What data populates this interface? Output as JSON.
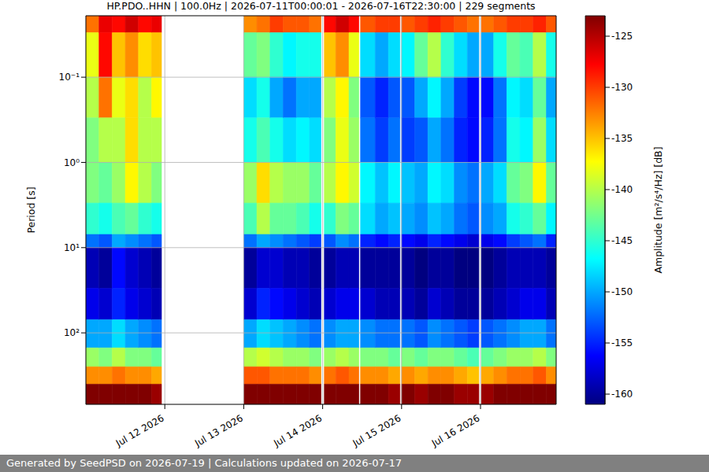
{
  "chart_data": {
    "type": "heatmap",
    "title": "HP.PDO..HHN | 100.0Hz | 2026-07-11T00:00:01 - 2026-07-16T22:30:00 | 229 segments",
    "y_label": "Period [s]",
    "annotation": "Generated by SeedPSD on 2026-07-19 | Calculations updated on 2026-07-17",
    "log": "y",
    "grid": true,
    "xlim": [
      "2026-07-11T00:00:00",
      "2026-07-16T23:00:00"
    ],
    "xticks": [
      {
        "value": "2026-07-12T00:00:00",
        "label": "Jul 12 2026"
      },
      {
        "value": "2026-07-13T00:00:00",
        "label": "Jul 13 2026"
      },
      {
        "value": "2026-07-14T00:00:00",
        "label": "Jul 14 2026"
      },
      {
        "value": "2026-07-15T00:00:00",
        "label": "Jul 15 2026"
      },
      {
        "value": "2026-07-16T00:00:00",
        "label": "Jul 16 2026"
      }
    ],
    "ylim": [
      0.019,
      690
    ],
    "yticks": [
      {
        "value": 0.1,
        "label": "10⁻¹"
      },
      {
        "value": 1,
        "label": "10⁰"
      },
      {
        "value": 10,
        "label": "10¹"
      },
      {
        "value": 100,
        "label": "10²"
      }
    ],
    "colorbar": {
      "label": "Amplitude [m²/s⁴/Hz] [dB]",
      "range": [
        -161,
        -123
      ],
      "ticks": [
        -160,
        -155,
        -150,
        -145,
        -140,
        -135,
        -130,
        -125
      ]
    },
    "heatmap": {
      "x_edges": [
        "2026-07-11T00:00:00",
        "2026-07-11T04:00:00",
        "2026-07-11T08:00:00",
        "2026-07-11T12:00:00",
        "2026-07-11T16:00:00",
        "2026-07-11T20:00:00",
        "2026-07-11T23:00:00",
        "2026-07-13T00:00:00",
        "2026-07-13T04:00:00",
        "2026-07-13T08:00:00",
        "2026-07-13T12:00:00",
        "2026-07-13T16:00:00",
        "2026-07-13T20:00:00",
        "2026-07-13T23:30:00",
        "2026-07-14T00:30:00",
        "2026-07-14T04:00:00",
        "2026-07-14T08:00:00",
        "2026-07-14T11:00:00",
        "2026-07-14T11:30:00",
        "2026-07-14T16:00:00",
        "2026-07-14T20:00:00",
        "2026-07-14T23:30:00",
        "2026-07-15T00:00:00",
        "2026-07-15T04:00:00",
        "2026-07-15T08:00:00",
        "2026-07-15T12:00:00",
        "2026-07-15T16:00:00",
        "2026-07-15T20:00:00",
        "2026-07-15T23:30:00",
        "2026-07-16T00:15:00",
        "2026-07-16T04:00:00",
        "2026-07-16T08:00:00",
        "2026-07-16T12:00:00",
        "2026-07-16T16:00:00",
        "2026-07-16T20:00:00",
        "2026-07-16T23:00:00"
      ],
      "y_edges": [
        0.019,
        0.03,
        0.1,
        0.3,
        1,
        3,
        7,
        10,
        30,
        70,
        150,
        250,
        400,
        690
      ],
      "values": [
        [
          -132,
          -138,
          -140,
          -142,
          -142,
          -145,
          -152,
          -159,
          -157,
          -150,
          -141,
          -133,
          -123
        ],
        [
          -127,
          -128,
          -132,
          -140,
          -143,
          -146,
          -153,
          -160,
          -158,
          -150,
          -142,
          -133,
          -123
        ],
        [
          -128,
          -135,
          -138,
          -140,
          -141,
          -144,
          -150,
          -156,
          -155,
          -148,
          -140,
          -132,
          -123
        ],
        [
          -126,
          -133,
          -136,
          -136,
          -137,
          -143,
          -151,
          -158,
          -157,
          -150,
          -142,
          -133,
          -123
        ],
        [
          -128,
          -136,
          -140,
          -140,
          -140,
          -145,
          -152,
          -159,
          -158,
          -151,
          -142,
          -133,
          -123
        ],
        [
          -127,
          -135,
          -137,
          -140,
          -142,
          -146,
          -153,
          -160,
          -159,
          -152,
          -143,
          -134,
          -124
        ],
        null,
        [
          -133,
          -143,
          -148,
          -146,
          -141,
          -144,
          -152,
          -160,
          -158,
          -150,
          -140,
          -131,
          -123
        ],
        [
          -132,
          -142,
          -146,
          -144,
          -136,
          -140,
          -150,
          -158,
          -155,
          -148,
          -139,
          -131,
          -123
        ],
        [
          -130,
          -145,
          -150,
          -146,
          -140,
          -143,
          -151,
          -158,
          -156,
          -149,
          -140,
          -132,
          -123
        ],
        [
          -131,
          -147,
          -152,
          -148,
          -141,
          -143,
          -152,
          -159,
          -157,
          -150,
          -141,
          -132,
          -123
        ],
        [
          -131,
          -146,
          -150,
          -147,
          -141,
          -144,
          -153,
          -159,
          -158,
          -151,
          -141,
          -132,
          -123
        ],
        [
          -132,
          -146,
          -150,
          -148,
          -143,
          -146,
          -154,
          -160,
          -159,
          -152,
          -142,
          -133,
          -123
        ],
        null,
        [
          -128,
          -135,
          -140,
          -142,
          -140,
          -145,
          -153,
          -160,
          -158,
          -151,
          -141,
          -132,
          -123
        ],
        [
          -126,
          -133,
          -137,
          -138,
          -137,
          -142,
          -151,
          -159,
          -157,
          -150,
          -140,
          -131,
          -123
        ],
        [
          -128,
          -138,
          -142,
          -141,
          -139,
          -143,
          -152,
          -159,
          -157,
          -150,
          -141,
          -132,
          -123
        ],
        null,
        [
          -131,
          -148,
          -153,
          -152,
          -147,
          -148,
          -155,
          -160,
          -158,
          -151,
          -142,
          -133,
          -123
        ],
        [
          -130,
          -150,
          -155,
          -154,
          -149,
          -150,
          -156,
          -160,
          -159,
          -152,
          -142,
          -133,
          -123
        ],
        [
          -130,
          -148,
          -153,
          -152,
          -147,
          -149,
          -155,
          -160,
          -159,
          -152,
          -143,
          -134,
          -124
        ],
        null,
        [
          -131,
          -147,
          -153,
          -154,
          -149,
          -150,
          -156,
          -160,
          -159,
          -152,
          -142,
          -133,
          -123
        ],
        [
          -130,
          -143,
          -150,
          -153,
          -150,
          -151,
          -157,
          -161,
          -160,
          -153,
          -143,
          -134,
          -124
        ],
        [
          -129,
          -140,
          -147,
          -150,
          -147,
          -149,
          -155,
          -160,
          -158,
          -151,
          -142,
          -133,
          -123
        ],
        [
          -130,
          -145,
          -150,
          -152,
          -148,
          -150,
          -156,
          -160,
          -159,
          -152,
          -142,
          -133,
          -123
        ],
        [
          -131,
          -148,
          -154,
          -155,
          -151,
          -152,
          -157,
          -161,
          -160,
          -153,
          -143,
          -134,
          -124
        ],
        [
          -132,
          -150,
          -156,
          -156,
          -152,
          -153,
          -158,
          -161,
          -160,
          -154,
          -144,
          -135,
          -124
        ],
        null,
        [
          -132,
          -150,
          -156,
          -155,
          -150,
          -151,
          -157,
          -161,
          -160,
          -153,
          -143,
          -134,
          -124
        ],
        [
          -131,
          -146,
          -152,
          -152,
          -148,
          -150,
          -156,
          -160,
          -159,
          -152,
          -142,
          -133,
          -123
        ],
        [
          -130,
          -143,
          -147,
          -146,
          -143,
          -146,
          -154,
          -159,
          -158,
          -151,
          -141,
          -132,
          -123
        ],
        [
          -130,
          -144,
          -148,
          -147,
          -142,
          -145,
          -153,
          -159,
          -157,
          -150,
          -141,
          -132,
          -123
        ],
        [
          -129,
          -140,
          -143,
          -141,
          -137,
          -143,
          -152,
          -159,
          -157,
          -150,
          -140,
          -131,
          -123
        ],
        [
          -131,
          -146,
          -150,
          -148,
          -143,
          -147,
          -155,
          -160,
          -159,
          -152,
          -142,
          -133,
          -123
        ]
      ]
    }
  }
}
